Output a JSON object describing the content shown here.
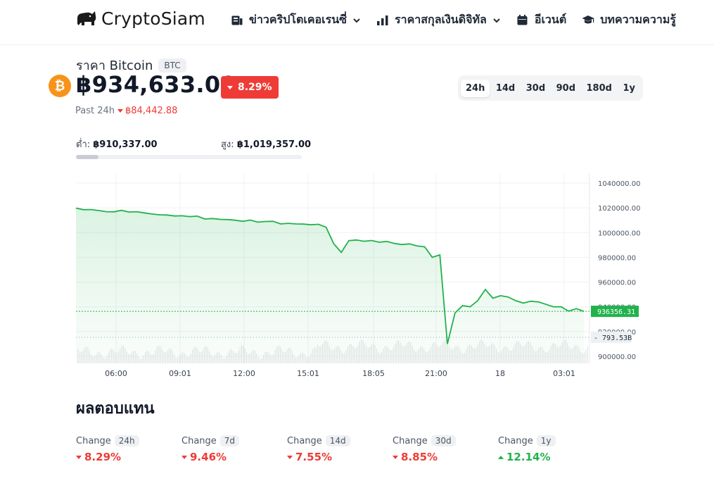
{
  "header": {
    "logo_text": "CryptoSiam",
    "nav": [
      {
        "label": "ข่าวคริปโตเคอเรนซี่",
        "icon": "news-icon",
        "has_dropdown": true
      },
      {
        "label": "ราคาสกุลเงินดิจิทัล",
        "icon": "bar-chart-icon",
        "has_dropdown": true
      },
      {
        "label": "อีเวนต์",
        "icon": "calendar-icon",
        "has_dropdown": false
      },
      {
        "label": "บทความความรู้",
        "icon": "graduation-cap-icon",
        "has_dropdown": false
      }
    ]
  },
  "coin": {
    "title": "ราคา Bitcoin",
    "symbol": "BTC",
    "price": "฿934,633.00",
    "change_pct": "8.29%",
    "past_label": "Past 24h",
    "past_change": "฿84,442.88",
    "low_label": "ต่ำ:",
    "low_value": "฿910,337.00",
    "high_label": "สูง:",
    "high_value": "฿1,019,357.00",
    "range_position": 0.1
  },
  "range_tabs": [
    "24h",
    "14d",
    "30d",
    "90d",
    "180d",
    "1y"
  ],
  "active_range": "24h",
  "chart_data": {
    "type": "area",
    "x_ticks": [
      "06:00",
      "09:01",
      "12:00",
      "15:01",
      "18:05",
      "21:00",
      "18",
      "03:01"
    ],
    "y_ticks": [
      "1040000.00",
      "1020000.00",
      "1000000.00",
      "980000.00",
      "960000.00",
      "940000.00",
      "920000.00",
      "900000.00"
    ],
    "ylim": [
      900000,
      1040000
    ],
    "y": [
      1019800,
      1018500,
      1018600,
      1017800,
      1016900,
      1016800,
      1018000,
      1016600,
      1016900,
      1015900,
      1015000,
      1014400,
      1014200,
      1013400,
      1013600,
      1012900,
      1013300,
      1011000,
      1011400,
      1010700,
      1010500,
      1010000,
      1009100,
      1010100,
      1008400,
      1009000,
      1009100,
      1007000,
      1007500,
      1007000,
      1006900,
      1006300,
      1006700,
      1004300,
      991000,
      984000,
      993500,
      994000,
      993000,
      993600,
      992200,
      992900,
      991200,
      990300,
      990900,
      989200,
      988500,
      980000,
      982000,
      910000,
      935000,
      941000,
      940000,
      945000,
      954000,
      947000,
      949000,
      948000,
      945000,
      943000,
      944500,
      944000,
      942000,
      940000,
      940000,
      936500,
      938500,
      936356
    ],
    "current_price_label": "936356.31",
    "volume_label": "793.53B",
    "color": "#22b24c"
  },
  "performance": {
    "title": "ผลตอบแทน",
    "items": [
      {
        "label": "Change",
        "period": "24h",
        "value": "8.29%",
        "direction": "down"
      },
      {
        "label": "Change",
        "period": "7d",
        "value": "9.46%",
        "direction": "down"
      },
      {
        "label": "Change",
        "period": "14d",
        "value": "7.55%",
        "direction": "down"
      },
      {
        "label": "Change",
        "period": "30d",
        "value": "8.85%",
        "direction": "down"
      },
      {
        "label": "Change",
        "period": "1y",
        "value": "12.14%",
        "direction": "up"
      }
    ]
  }
}
